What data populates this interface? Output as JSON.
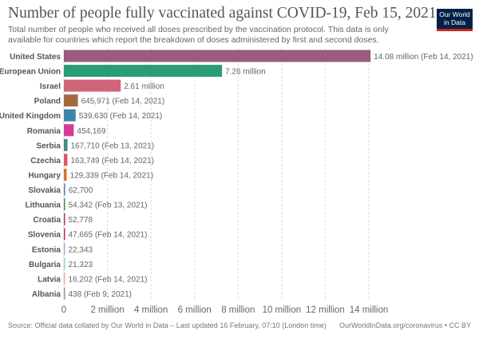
{
  "header": {
    "title": "Number of people fully vaccinated against COVID-19, Feb 15, 2021",
    "subtitle": "Total number of people who received all doses prescribed by the vaccination protocol. This data is only available for countries which report the breakdown of doses administered by first and second doses.",
    "logo_line1": "Our World",
    "logo_line2": "in Data"
  },
  "chart_data": {
    "type": "bar",
    "orientation": "horizontal",
    "title": "Number of people fully vaccinated against COVID-19, Feb 15, 2021",
    "xlim": [
      0,
      14000000
    ],
    "xticks": [
      0,
      2000000,
      4000000,
      6000000,
      8000000,
      10000000,
      12000000,
      14000000
    ],
    "xtick_labels": [
      "0",
      "2 million",
      "4 million",
      "6 million",
      "8 million",
      "10 million",
      "12 million",
      "14 million"
    ],
    "grid": true,
    "categories": [
      "United States",
      "European Union",
      "Israel",
      "Poland",
      "United Kingdom",
      "Romania",
      "Serbia",
      "Czechia",
      "Hungary",
      "Slovakia",
      "Lithuania",
      "Croatia",
      "Slovenia",
      "Estonia",
      "Bulgaria",
      "Latvia",
      "Albania"
    ],
    "values": [
      14080000,
      7260000,
      2610000,
      645971,
      539630,
      454169,
      167710,
      163749,
      129339,
      62700,
      54342,
      52778,
      47665,
      22343,
      21323,
      16202,
      438
    ],
    "labels": [
      "14.08 million (Feb 14, 2021)",
      "7.26 million",
      "2.61 million",
      "645,971 (Feb 14, 2021)",
      "539,630 (Feb 14, 2021)",
      "454,169",
      "167,710 (Feb 13, 2021)",
      "163,749 (Feb 14, 2021)",
      "129,339 (Feb 14, 2021)",
      "62,700",
      "54,342 (Feb 13, 2021)",
      "52,778",
      "47,665 (Feb 14, 2021)",
      "22,343",
      "21,323",
      "16,202 (Feb 14, 2021)",
      "438 (Feb 9, 2021)"
    ],
    "colors": [
      "#9a5b7e",
      "#2a9c78",
      "#d06579",
      "#a46840",
      "#3a86aa",
      "#d63b9a",
      "#4a8a7e",
      "#e05667",
      "#d9742e",
      "#6c88c8",
      "#2f9c5c",
      "#b53a4a",
      "#c82a70",
      "#b8a8d8",
      "#9cd0d0",
      "#e8b4a0",
      "#999999"
    ]
  },
  "footer": {
    "source": "Source: Official data collated by Our World in Data – Last updated 16 February, 07:10 (London time)",
    "credit": "OurWorldInData.org/coronavirus • CC BY"
  }
}
